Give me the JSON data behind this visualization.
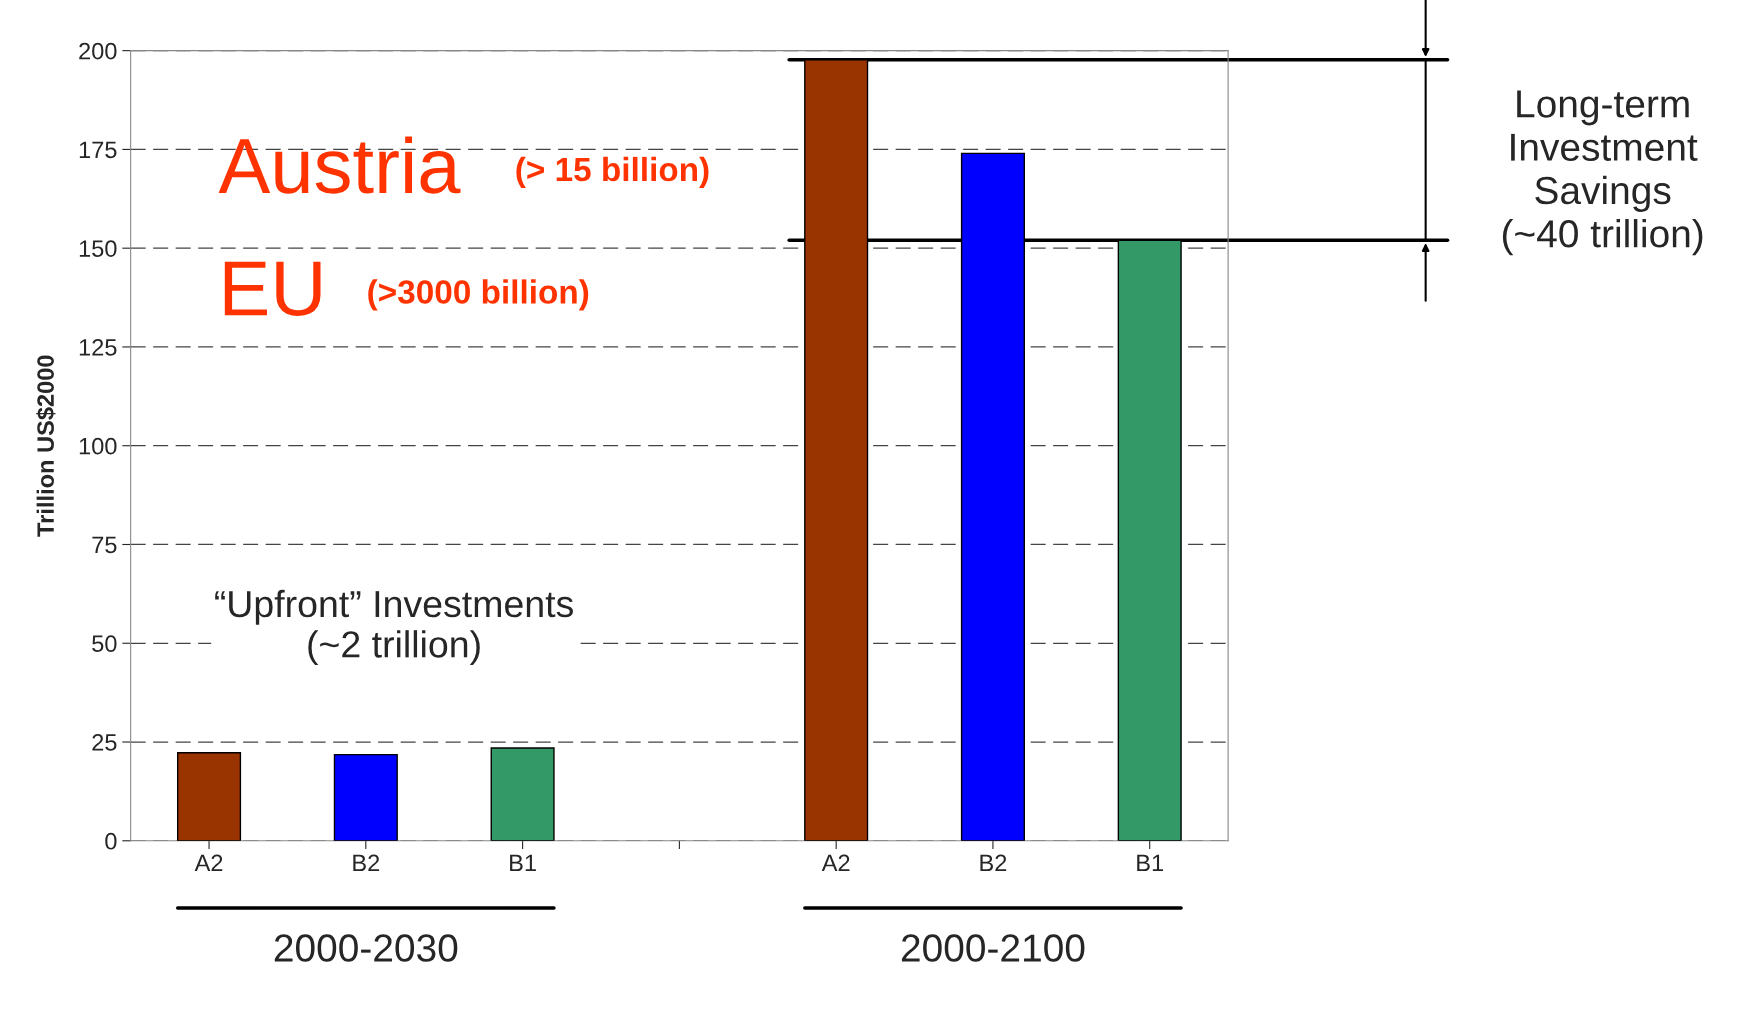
{
  "chart_data": {
    "type": "bar",
    "categories": [
      "A2",
      "B2",
      "B1",
      null,
      "A2",
      "B2",
      "B1"
    ],
    "colors": [
      "#993300",
      "#0000ff",
      "#339966",
      null,
      "#993300",
      "#0000ff",
      "#339966"
    ],
    "values": [
      22.3,
      21.8,
      23.5,
      null,
      197.7,
      174,
      152
    ],
    "ylabel": "Trillion US$2000",
    "ylim": [
      0,
      200
    ],
    "yticks": [
      0,
      25,
      50,
      75,
      100,
      125,
      150,
      175,
      200
    ],
    "grid": "y",
    "ref_lines": [
      {
        "axis": "y",
        "value": 197.7,
        "color": "#000000"
      },
      {
        "axis": "y",
        "value": 152,
        "color": "#000000"
      }
    ],
    "annotations": [
      "Austria",
      "(> 15 billion)",
      "EU",
      "(>3000 billion)",
      "“Upfront” Investments\n(~2 trillion)",
      "Long-term\nInvestment\nSavings\n(~40 trillion)",
      "2000-2030",
      "2000-2100"
    ]
  }
}
